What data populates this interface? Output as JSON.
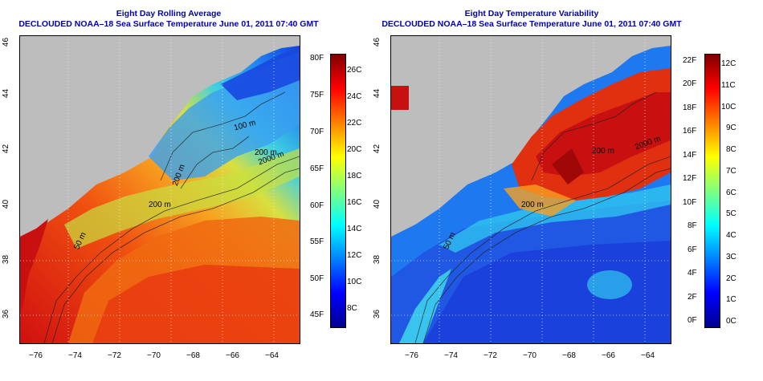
{
  "left": {
    "title1": "Eight Day Rolling Average",
    "title2": "DECLOUDED NOAA–18 Sea Surface Temperature June 01, 2011 07:40 GMT",
    "lon_ticks": [
      "−76",
      "−74",
      "−72",
      "−70",
      "−68",
      "−66",
      "−64"
    ],
    "lat_ticks": [
      "36",
      "38",
      "40",
      "42",
      "44",
      "46"
    ],
    "contour_labels": [
      "100 m",
      "200 m",
      "2000 m",
      "200 m",
      "200 m",
      "50 m"
    ],
    "colorbar_f": [
      "80F",
      "75F",
      "70F",
      "65F",
      "60F",
      "55F",
      "50F",
      "45F"
    ],
    "colorbar_c": [
      "26C",
      "24C",
      "22C",
      "20C",
      "18C",
      "16C",
      "14C",
      "12C",
      "10C",
      "8C"
    ]
  },
  "right": {
    "title1": "Eight Day Temperature Variability",
    "title2": "DECLOUDED NOAA–18 Sea Surface Temperature June 01, 2011 07:40 GMT",
    "lon_ticks": [
      "−76",
      "−74",
      "−72",
      "−70",
      "−68",
      "−66",
      "−64"
    ],
    "lat_ticks": [
      "36",
      "38",
      "40",
      "42",
      "44",
      "46"
    ],
    "contour_labels": [
      "200 m",
      "2000 m",
      "200 m",
      "50 m"
    ],
    "colorbar_f": [
      "22F",
      "20F",
      "18F",
      "16F",
      "14F",
      "12F",
      "10F",
      "8F",
      "6F",
      "4F",
      "2F",
      "0F"
    ],
    "colorbar_c": [
      "12C",
      "11C",
      "10C",
      "9C",
      "8C",
      "7C",
      "6C",
      "5C",
      "4C",
      "3C",
      "2C",
      "1C",
      "0C"
    ]
  },
  "colors": {
    "title": "#0000b0",
    "land": "#bdbdbd",
    "jet": [
      "#00008f",
      "#0000ff",
      "#0080ff",
      "#00ffff",
      "#80ff80",
      "#ffff00",
      "#ff8000",
      "#ff0000",
      "#800000"
    ]
  }
}
